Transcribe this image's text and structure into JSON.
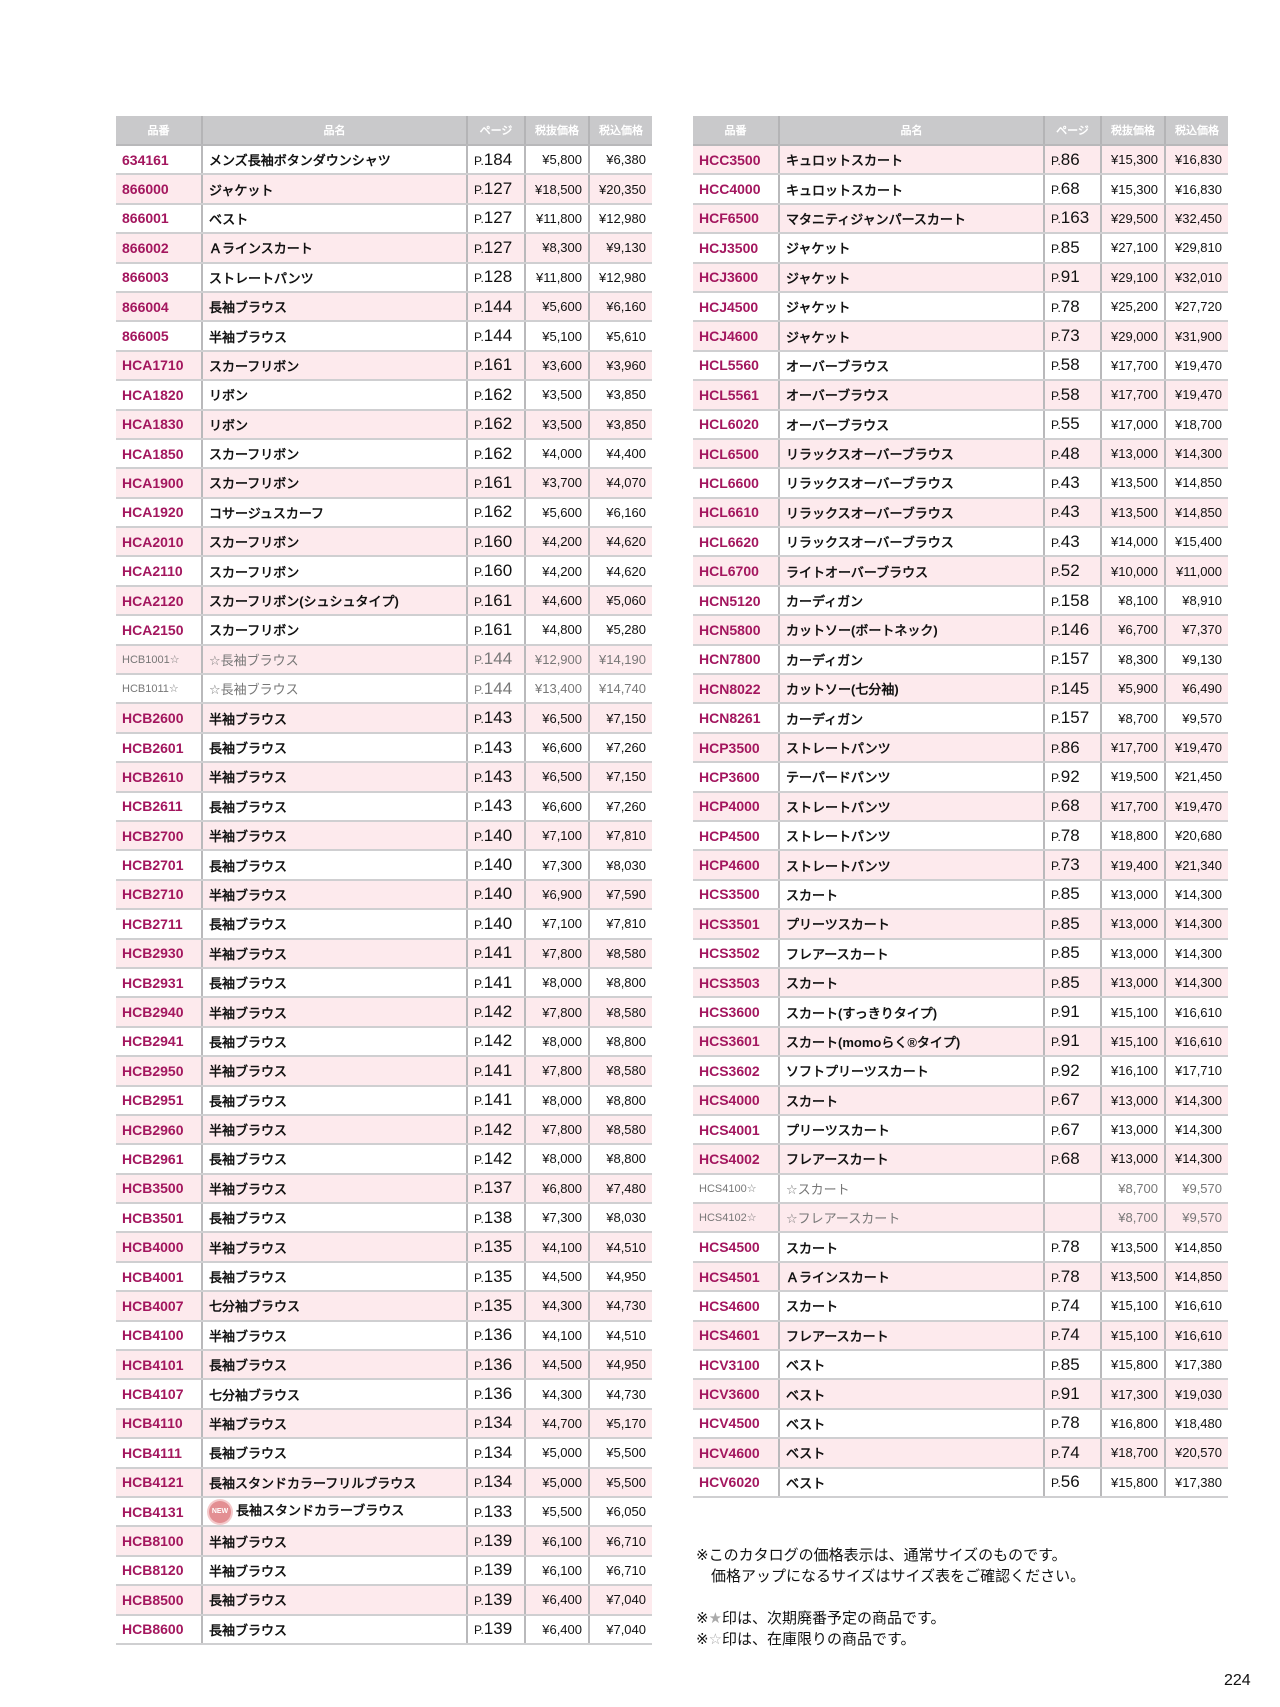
{
  "headers": [
    "品番",
    "品名",
    "ページ",
    "税抜価格",
    "税込価格"
  ],
  "page_prefix": "P.",
  "new_badge": "NEW",
  "colors": {
    "code": "#a3165e",
    "stripe": "#fdeaed",
    "header": "#c9c9cb",
    "stock_text": "#777777"
  },
  "left_table": [
    [
      "634161",
      "メンズ長袖ボタンダウンシャツ",
      "184",
      "¥5,800",
      "¥6,380"
    ],
    [
      "866000",
      "ジャケット",
      "127",
      "¥18,500",
      "¥20,350"
    ],
    [
      "866001",
      "ベスト",
      "127",
      "¥11,800",
      "¥12,980"
    ],
    [
      "866002",
      "Ａラインスカート",
      "127",
      "¥8,300",
      "¥9,130"
    ],
    [
      "866003",
      "ストレートパンツ",
      "128",
      "¥11,800",
      "¥12,980"
    ],
    [
      "866004",
      "長袖ブラウス",
      "144",
      "¥5,600",
      "¥6,160"
    ],
    [
      "866005",
      "半袖ブラウス",
      "144",
      "¥5,100",
      "¥5,610"
    ],
    [
      "HCA1710",
      "スカーフリボン",
      "161",
      "¥3,600",
      "¥3,960"
    ],
    [
      "HCA1820",
      "リボン",
      "162",
      "¥3,500",
      "¥3,850"
    ],
    [
      "HCA1830",
      "リボン",
      "162",
      "¥3,500",
      "¥3,850"
    ],
    [
      "HCA1850",
      "スカーフリボン",
      "162",
      "¥4,000",
      "¥4,400"
    ],
    [
      "HCA1900",
      "スカーフリボン",
      "161",
      "¥3,700",
      "¥4,070"
    ],
    [
      "HCA1920",
      "コサージュスカーフ",
      "162",
      "¥5,600",
      "¥6,160"
    ],
    [
      "HCA2010",
      "スカーフリボン",
      "160",
      "¥4,200",
      "¥4,620"
    ],
    [
      "HCA2110",
      "スカーフリボン",
      "160",
      "¥4,200",
      "¥4,620"
    ],
    [
      "HCA2120",
      "スカーフリボン(シュシュタイプ)",
      "161",
      "¥4,600",
      "¥5,060"
    ],
    [
      "HCA2150",
      "スカーフリボン",
      "161",
      "¥4,800",
      "¥5,280"
    ],
    [
      "HCB1001☆",
      "☆長袖ブラウス",
      "144",
      "¥12,900",
      "¥14,190",
      "stock"
    ],
    [
      "HCB1011☆",
      "☆長袖ブラウス",
      "144",
      "¥13,400",
      "¥14,740",
      "stock"
    ],
    [
      "HCB2600",
      "半袖ブラウス",
      "143",
      "¥6,500",
      "¥7,150"
    ],
    [
      "HCB2601",
      "長袖ブラウス",
      "143",
      "¥6,600",
      "¥7,260"
    ],
    [
      "HCB2610",
      "半袖ブラウス",
      "143",
      "¥6,500",
      "¥7,150"
    ],
    [
      "HCB2611",
      "長袖ブラウス",
      "143",
      "¥6,600",
      "¥7,260"
    ],
    [
      "HCB2700",
      "半袖ブラウス",
      "140",
      "¥7,100",
      "¥7,810"
    ],
    [
      "HCB2701",
      "長袖ブラウス",
      "140",
      "¥7,300",
      "¥8,030"
    ],
    [
      "HCB2710",
      "半袖ブラウス",
      "140",
      "¥6,900",
      "¥7,590"
    ],
    [
      "HCB2711",
      "長袖ブラウス",
      "140",
      "¥7,100",
      "¥7,810"
    ],
    [
      "HCB2930",
      "半袖ブラウス",
      "141",
      "¥7,800",
      "¥8,580"
    ],
    [
      "HCB2931",
      "長袖ブラウス",
      "141",
      "¥8,000",
      "¥8,800"
    ],
    [
      "HCB2940",
      "半袖ブラウス",
      "142",
      "¥7,800",
      "¥8,580"
    ],
    [
      "HCB2941",
      "長袖ブラウス",
      "142",
      "¥8,000",
      "¥8,800"
    ],
    [
      "HCB2950",
      "半袖ブラウス",
      "141",
      "¥7,800",
      "¥8,580"
    ],
    [
      "HCB2951",
      "長袖ブラウス",
      "141",
      "¥8,000",
      "¥8,800"
    ],
    [
      "HCB2960",
      "半袖ブラウス",
      "142",
      "¥7,800",
      "¥8,580"
    ],
    [
      "HCB2961",
      "長袖ブラウス",
      "142",
      "¥8,000",
      "¥8,800"
    ],
    [
      "HCB3500",
      "半袖ブラウス",
      "137",
      "¥6,800",
      "¥7,480"
    ],
    [
      "HCB3501",
      "長袖ブラウス",
      "138",
      "¥7,300",
      "¥8,030"
    ],
    [
      "HCB4000",
      "半袖ブラウス",
      "135",
      "¥4,100",
      "¥4,510"
    ],
    [
      "HCB4001",
      "長袖ブラウス",
      "135",
      "¥4,500",
      "¥4,950"
    ],
    [
      "HCB4007",
      "七分袖ブラウス",
      "135",
      "¥4,300",
      "¥4,730"
    ],
    [
      "HCB4100",
      "半袖ブラウス",
      "136",
      "¥4,100",
      "¥4,510"
    ],
    [
      "HCB4101",
      "長袖ブラウス",
      "136",
      "¥4,500",
      "¥4,950"
    ],
    [
      "HCB4107",
      "七分袖ブラウス",
      "136",
      "¥4,300",
      "¥4,730"
    ],
    [
      "HCB4110",
      "半袖ブラウス",
      "134",
      "¥4,700",
      "¥5,170"
    ],
    [
      "HCB4111",
      "長袖ブラウス",
      "134",
      "¥5,000",
      "¥5,500"
    ],
    [
      "HCB4121",
      "長袖スタンドカラーフリルブラウス",
      "134",
      "¥5,000",
      "¥5,500"
    ],
    [
      "HCB4131",
      "長袖スタンドカラーブラウス",
      "133",
      "¥5,500",
      "¥6,050",
      "new"
    ],
    [
      "HCB8100",
      "半袖ブラウス",
      "139",
      "¥6,100",
      "¥6,710"
    ],
    [
      "HCB8120",
      "半袖ブラウス",
      "139",
      "¥6,100",
      "¥6,710"
    ],
    [
      "HCB8500",
      "長袖ブラウス",
      "139",
      "¥6,400",
      "¥7,040"
    ],
    [
      "HCB8600",
      "長袖ブラウス",
      "139",
      "¥6,400",
      "¥7,040"
    ]
  ],
  "right_table": [
    [
      "HCC3500",
      "キュロットスカート",
      "86",
      "¥15,300",
      "¥16,830"
    ],
    [
      "HCC4000",
      "キュロットスカート",
      "68",
      "¥15,300",
      "¥16,830"
    ],
    [
      "HCF6500",
      "マタニティジャンパースカート",
      "163",
      "¥29,500",
      "¥32,450"
    ],
    [
      "HCJ3500",
      "ジャケット",
      "85",
      "¥27,100",
      "¥29,810"
    ],
    [
      "HCJ3600",
      "ジャケット",
      "91",
      "¥29,100",
      "¥32,010"
    ],
    [
      "HCJ4500",
      "ジャケット",
      "78",
      "¥25,200",
      "¥27,720"
    ],
    [
      "HCJ4600",
      "ジャケット",
      "73",
      "¥29,000",
      "¥31,900"
    ],
    [
      "HCL5560",
      "オーバーブラウス",
      "58",
      "¥17,700",
      "¥19,470"
    ],
    [
      "HCL5561",
      "オーバーブラウス",
      "58",
      "¥17,700",
      "¥19,470"
    ],
    [
      "HCL6020",
      "オーバーブラウス",
      "55",
      "¥17,000",
      "¥18,700"
    ],
    [
      "HCL6500",
      "リラックスオーバーブラウス",
      "48",
      "¥13,000",
      "¥14,300"
    ],
    [
      "HCL6600",
      "リラックスオーバーブラウス",
      "43",
      "¥13,500",
      "¥14,850"
    ],
    [
      "HCL6610",
      "リラックスオーバーブラウス",
      "43",
      "¥13,500",
      "¥14,850"
    ],
    [
      "HCL6620",
      "リラックスオーバーブラウス",
      "43",
      "¥14,000",
      "¥15,400"
    ],
    [
      "HCL6700",
      "ライトオーバーブラウス",
      "52",
      "¥10,000",
      "¥11,000"
    ],
    [
      "HCN5120",
      "カーディガン",
      "158",
      "¥8,100",
      "¥8,910"
    ],
    [
      "HCN5800",
      "カットソー(ボートネック)",
      "146",
      "¥6,700",
      "¥7,370"
    ],
    [
      "HCN7800",
      "カーディガン",
      "157",
      "¥8,300",
      "¥9,130"
    ],
    [
      "HCN8022",
      "カットソー(七分袖)",
      "145",
      "¥5,900",
      "¥6,490"
    ],
    [
      "HCN8261",
      "カーディガン",
      "157",
      "¥8,700",
      "¥9,570"
    ],
    [
      "HCP3500",
      "ストレートパンツ",
      "86",
      "¥17,700",
      "¥19,470"
    ],
    [
      "HCP3600",
      "テーパードパンツ",
      "92",
      "¥19,500",
      "¥21,450"
    ],
    [
      "HCP4000",
      "ストレートパンツ",
      "68",
      "¥17,700",
      "¥19,470"
    ],
    [
      "HCP4500",
      "ストレートパンツ",
      "78",
      "¥18,800",
      "¥20,680"
    ],
    [
      "HCP4600",
      "ストレートパンツ",
      "73",
      "¥19,400",
      "¥21,340"
    ],
    [
      "HCS3500",
      "スカート",
      "85",
      "¥13,000",
      "¥14,300"
    ],
    [
      "HCS3501",
      "プリーツスカート",
      "85",
      "¥13,000",
      "¥14,300"
    ],
    [
      "HCS3502",
      "フレアースカート",
      "85",
      "¥13,000",
      "¥14,300"
    ],
    [
      "HCS3503",
      "スカート",
      "85",
      "¥13,000",
      "¥14,300"
    ],
    [
      "HCS3600",
      "スカート(すっきりタイプ)",
      "91",
      "¥15,100",
      "¥16,610"
    ],
    [
      "HCS3601",
      "スカート(momoらく®タイプ)",
      "91",
      "¥15,100",
      "¥16,610"
    ],
    [
      "HCS3602",
      "ソフトプリーツスカート",
      "92",
      "¥16,100",
      "¥17,710"
    ],
    [
      "HCS4000",
      "スカート",
      "67",
      "¥13,000",
      "¥14,300"
    ],
    [
      "HCS4001",
      "プリーツスカート",
      "67",
      "¥13,000",
      "¥14,300"
    ],
    [
      "HCS4002",
      "フレアースカート",
      "68",
      "¥13,000",
      "¥14,300"
    ],
    [
      "HCS4100☆",
      "☆スカート",
      "",
      "¥8,700",
      "¥9,570",
      "stock"
    ],
    [
      "HCS4102☆",
      "☆フレアースカート",
      "",
      "¥8,700",
      "¥9,570",
      "stock"
    ],
    [
      "HCS4500",
      "スカート",
      "78",
      "¥13,500",
      "¥14,850"
    ],
    [
      "HCS4501",
      "Ａラインスカート",
      "78",
      "¥13,500",
      "¥14,850"
    ],
    [
      "HCS4600",
      "スカート",
      "74",
      "¥15,100",
      "¥16,610"
    ],
    [
      "HCS4601",
      "フレアースカート",
      "74",
      "¥15,100",
      "¥16,610"
    ],
    [
      "HCV3100",
      "ベスト",
      "85",
      "¥15,800",
      "¥17,380"
    ],
    [
      "HCV3600",
      "ベスト",
      "91",
      "¥17,300",
      "¥19,030"
    ],
    [
      "HCV4500",
      "ベスト",
      "78",
      "¥16,800",
      "¥18,480"
    ],
    [
      "HCV4600",
      "ベスト",
      "74",
      "¥18,700",
      "¥20,570"
    ],
    [
      "HCV6020",
      "ベスト",
      "56",
      "¥15,800",
      "¥17,380"
    ]
  ],
  "notes": {
    "line1": "※このカタログの価格表示は、通常サイズのものです。",
    "line2": "価格アップになるサイズはサイズ表をご確認ください。",
    "line3_mark": "※",
    "line3_star": "★",
    "line3": "印は、次期廃番予定の商品です。",
    "line4_mark": "※",
    "line4_star": "☆",
    "line4": "印は、在庫限りの商品です。"
  },
  "page_number": "224"
}
